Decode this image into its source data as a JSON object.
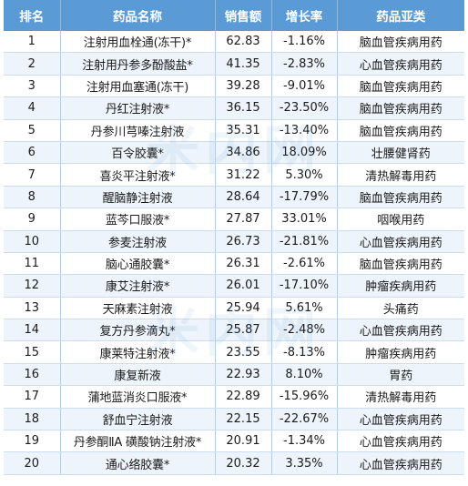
{
  "table": {
    "headers": [
      "排名",
      "药品名称",
      "销售额",
      "增长率",
      "药品亚类"
    ],
    "rows": [
      {
        "rank": "1",
        "name": "注射用血栓通(冻干)*",
        "sales": "62.83",
        "growth": "-1.16%",
        "category": "脑血管疾病用药"
      },
      {
        "rank": "2",
        "name": "注射用丹参多酚酸盐*",
        "sales": "41.35",
        "growth": "-2.83%",
        "category": "心血管疾病用药"
      },
      {
        "rank": "3",
        "name": "注射用血塞通(冻干)",
        "sales": "39.28",
        "growth": "-9.01%",
        "category": "脑血管疾病用药"
      },
      {
        "rank": "4",
        "name": "丹红注射液*",
        "sales": "36.15",
        "growth": "-23.50%",
        "category": "脑血管疾病用药"
      },
      {
        "rank": "5",
        "name": "丹参川芎嗪注射液",
        "sales": "35.31",
        "growth": "-13.40%",
        "category": "脑血管疾病用药"
      },
      {
        "rank": "6",
        "name": "百令胶囊*",
        "sales": "34.86",
        "growth": "18.09%",
        "category": "壮腰健肾药"
      },
      {
        "rank": "7",
        "name": "喜炎平注射液*",
        "sales": "31.22",
        "growth": "5.30%",
        "category": "清热解毒用药"
      },
      {
        "rank": "8",
        "name": "醒脑静注射液",
        "sales": "28.64",
        "growth": "-17.79%",
        "category": "脑血管疾病用药"
      },
      {
        "rank": "9",
        "name": "蓝芩口服液*",
        "sales": "27.87",
        "growth": "33.01%",
        "category": "咽喉用药"
      },
      {
        "rank": "10",
        "name": "参麦注射液",
        "sales": "26.73",
        "growth": "-21.81%",
        "category": "心血管疾病用药"
      },
      {
        "rank": "11",
        "name": "脑心通胶囊*",
        "sales": "26.31",
        "growth": "-2.61%",
        "category": "脑血管疾病用药"
      },
      {
        "rank": "12",
        "name": "康艾注射液*",
        "sales": "26.01",
        "growth": "-17.10%",
        "category": "肿瘤疾病用药"
      },
      {
        "rank": "13",
        "name": "天麻素注射液",
        "sales": "25.94",
        "growth": "5.61%",
        "category": "头痛药"
      },
      {
        "rank": "14",
        "name": "复方丹参滴丸*",
        "sales": "25.87",
        "growth": "-2.48%",
        "category": "心血管疾病用药"
      },
      {
        "rank": "15",
        "name": "康莱特注射液*",
        "sales": "23.55",
        "growth": "-8.13%",
        "category": "肿瘤疾病用药"
      },
      {
        "rank": "16",
        "name": "康复新液",
        "sales": "22.93",
        "growth": "8.10%",
        "category": "胃药"
      },
      {
        "rank": "17",
        "name": "蒲地蓝消炎口服液*",
        "sales": "22.89",
        "growth": "-15.96%",
        "category": "清热解毒用药"
      },
      {
        "rank": "18",
        "name": "舒血宁注射液",
        "sales": "22.15",
        "growth": "-22.67%",
        "category": "心血管疾病用药"
      },
      {
        "rank": "19",
        "name": "丹参酮ⅡA 磺酸钠注射液*",
        "sales": "20.91",
        "growth": "-1.34%",
        "category": "心血管疾病用药"
      },
      {
        "rank": "20",
        "name": "通心络胶囊*",
        "sales": "20.32",
        "growth": "3.35%",
        "category": "心血管疾病用药"
      }
    ]
  },
  "watermark": [
    "米内网",
    "米内网"
  ],
  "colors": {
    "header_bg": "#5b9bd5",
    "header_text": "#ffffff",
    "alt_row": "#eef4fb"
  }
}
